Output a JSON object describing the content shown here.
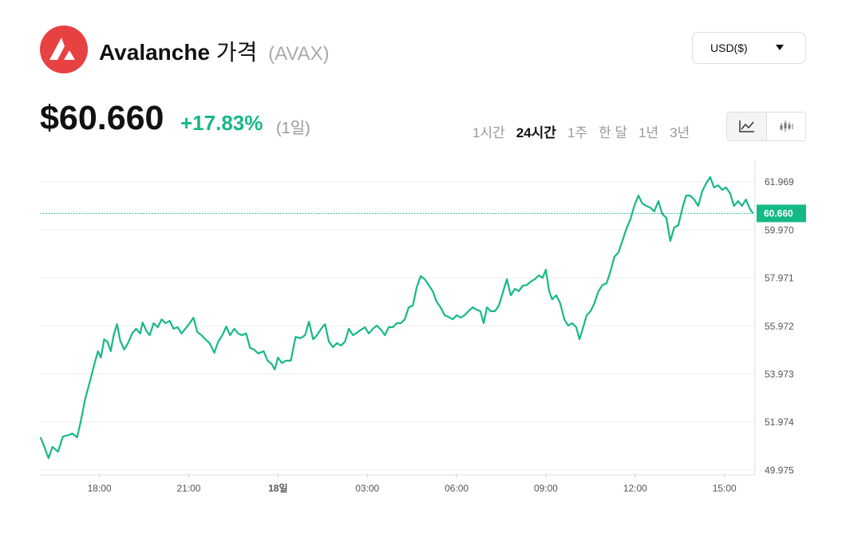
{
  "header": {
    "name": "Avalanche",
    "suffix": "가격",
    "symbol": "(AVAX)",
    "price": "$60.660",
    "change": "+17.83%",
    "period": "(1일)",
    "currency": "USD($)",
    "tabs": [
      "1시간",
      "24시간",
      "1주",
      "한 달",
      "1년",
      "3년"
    ],
    "active_tab": 1
  },
  "chart_data": {
    "type": "line",
    "color": "#16b986",
    "x": [
      16.02,
      16.15,
      16.29,
      16.42,
      16.61,
      16.77,
      16.98,
      17.09,
      17.25,
      17.36,
      17.52,
      17.68,
      17.84,
      17.95,
      18.05,
      18.16,
      18.27,
      18.38,
      18.48,
      18.59,
      18.7,
      18.83,
      18.96,
      19.1,
      19.23,
      19.37,
      19.45,
      19.58,
      19.69,
      19.82,
      19.96,
      20.09,
      20.22,
      20.36,
      20.49,
      20.63,
      20.76,
      20.89,
      21.03,
      21.16,
      21.29,
      21.43,
      21.56,
      21.7,
      21.86,
      21.99,
      22.13,
      22.26,
      22.39,
      22.53,
      22.66,
      22.79,
      22.93,
      23.06,
      23.2,
      23.33,
      23.52,
      23.65,
      23.79,
      23.89,
      24.0,
      24.13,
      24.27,
      24.43,
      24.59,
      24.75,
      24.91,
      25.04,
      25.18,
      25.31,
      25.45,
      25.58,
      25.71,
      25.85,
      25.98,
      26.12,
      26.25,
      26.38,
      26.52,
      26.65,
      26.79,
      26.92,
      27.05,
      27.19,
      27.32,
      27.46,
      27.59,
      27.72,
      27.86,
      27.99,
      28.13,
      28.26,
      28.39,
      28.53,
      28.66,
      28.79,
      28.93,
      29.06,
      29.2,
      29.33,
      29.46,
      29.6,
      29.73,
      29.87,
      30.0,
      30.13,
      30.27,
      30.4,
      30.54,
      30.67,
      30.8,
      30.91,
      31.02,
      31.15,
      31.29,
      31.42,
      31.55,
      31.69,
      31.82,
      31.96,
      32.09,
      32.22,
      32.36,
      32.49,
      32.63,
      32.76,
      32.89,
      33.0,
      33.11,
      33.21,
      33.35,
      33.48,
      33.62,
      33.75,
      33.88,
      34.02,
      34.13,
      34.23,
      34.37,
      34.5,
      34.63,
      34.77,
      34.9,
      35.04,
      35.17,
      35.3,
      35.44,
      35.57,
      35.71,
      35.84,
      35.97,
      36.11,
      36.24,
      36.38,
      36.51,
      36.64,
      36.78,
      36.91,
      37.05,
      37.18,
      37.31,
      37.45,
      37.58,
      37.71,
      37.85,
      37.98,
      38.12,
      38.25,
      38.38,
      38.52,
      38.65,
      38.79,
      38.92,
      39.05,
      39.19,
      39.32,
      39.46,
      39.59,
      39.72,
      39.86,
      39.96
    ],
    "values": [
      51.34,
      50.94,
      50.47,
      50.94,
      50.74,
      51.37,
      51.44,
      51.5,
      51.34,
      51.93,
      52.93,
      53.66,
      54.43,
      54.92,
      54.66,
      55.42,
      55.32,
      54.92,
      55.59,
      56.05,
      55.36,
      54.99,
      55.26,
      55.66,
      55.86,
      55.66,
      56.12,
      55.76,
      55.59,
      56.09,
      55.92,
      56.25,
      56.09,
      56.19,
      55.86,
      55.92,
      55.66,
      55.86,
      56.09,
      56.32,
      55.72,
      55.59,
      55.42,
      55.26,
      54.86,
      55.32,
      55.59,
      55.95,
      55.59,
      55.86,
      55.66,
      55.59,
      55.66,
      55.06,
      54.99,
      54.83,
      54.92,
      54.53,
      54.39,
      54.16,
      54.66,
      54.43,
      54.53,
      54.53,
      55.52,
      55.46,
      55.59,
      56.15,
      55.42,
      55.59,
      55.86,
      56.05,
      55.32,
      55.09,
      55.26,
      55.16,
      55.32,
      55.86,
      55.59,
      55.69,
      55.82,
      55.92,
      55.66,
      55.86,
      55.99,
      55.82,
      55.59,
      55.92,
      55.92,
      56.09,
      56.09,
      56.25,
      56.75,
      56.82,
      57.58,
      58.05,
      57.92,
      57.68,
      57.42,
      56.98,
      56.75,
      56.42,
      56.35,
      56.25,
      56.42,
      56.32,
      56.42,
      56.59,
      56.75,
      56.65,
      56.59,
      56.09,
      56.75,
      56.59,
      56.59,
      56.82,
      57.35,
      57.92,
      57.25,
      57.52,
      57.42,
      57.65,
      57.68,
      57.82,
      57.92,
      58.08,
      57.98,
      58.31,
      57.42,
      57.08,
      57.25,
      56.92,
      56.25,
      55.99,
      56.09,
      55.92,
      55.42,
      55.82,
      56.42,
      56.59,
      56.92,
      57.42,
      57.68,
      57.75,
      58.25,
      58.85,
      59.04,
      59.51,
      60.04,
      60.41,
      60.97,
      61.4,
      61.07,
      60.97,
      60.9,
      60.74,
      61.17,
      60.64,
      60.47,
      59.51,
      60.07,
      60.17,
      60.84,
      61.4,
      61.4,
      61.24,
      60.97,
      61.57,
      61.9,
      62.17,
      61.74,
      61.83,
      61.64,
      61.74,
      61.5,
      60.97,
      61.17,
      60.97,
      61.24,
      60.84,
      60.66
    ],
    "current_price": {
      "value": 60.66,
      "label": "60.660"
    },
    "xlim": [
      16.0,
      40.0
    ],
    "xticks": [
      {
        "value": 18,
        "label": "18:00"
      },
      {
        "value": 21,
        "label": "21:00"
      },
      {
        "value": 24,
        "label": "18일"
      },
      {
        "value": 27,
        "label": "03:00"
      },
      {
        "value": 30,
        "label": "06:00"
      },
      {
        "value": 33,
        "label": "09:00"
      },
      {
        "value": 36,
        "label": "12:00"
      },
      {
        "value": 39,
        "label": "15:00"
      }
    ],
    "ylim": [
      49.78,
      62.9
    ],
    "yticks": [
      49.975,
      51.974,
      53.973,
      55.972,
      57.971,
      {
        "value": 59.97,
        "label": "59.970"
      },
      61.969
    ],
    "grid": true
  }
}
